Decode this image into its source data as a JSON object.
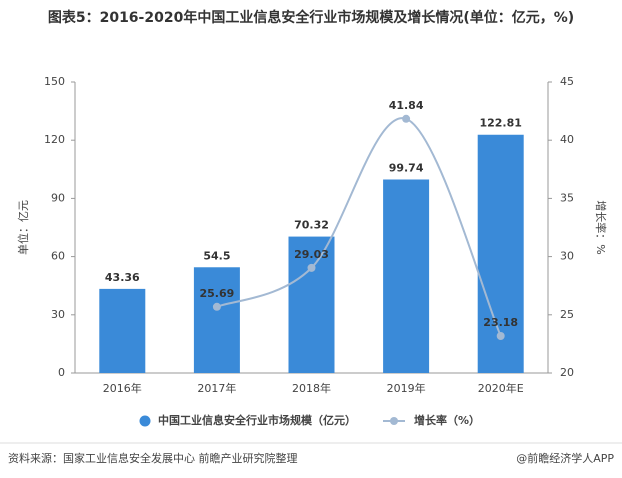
{
  "chart_data": {
    "type": "bar",
    "title": "图表5：2016-2020年中国工业信息安全行业市场规模及增长情况(单位：亿元，%)",
    "y_label": "单位：亿元",
    "y2_label": "增长率：%",
    "categories": [
      "2016年",
      "2017年",
      "2018年",
      "2019年",
      "2020年E"
    ],
    "series": [
      {
        "name": "中国工业信息安全行业市场规模（亿元）",
        "type": "bar",
        "color": "#3a8ad8",
        "values": [
          43.36,
          54.5,
          70.32,
          99.74,
          122.81
        ]
      },
      {
        "name": "增长率（%）",
        "type": "line",
        "axis": "y2",
        "color": "#a3b9d3",
        "values": [
          null,
          25.69,
          29.03,
          41.84,
          23.18
        ]
      }
    ],
    "ylim": [
      0,
      150
    ],
    "yticks": [
      0,
      30,
      60,
      90,
      120,
      150
    ],
    "y2lim": [
      20,
      45
    ],
    "y2ticks": [
      20,
      25,
      30,
      35,
      40,
      45
    ],
    "legend": "bottom",
    "source": "资料来源：国家工业信息安全发展中心 前瞻产业研究院整理",
    "credit": "@前瞻经济学人APP"
  }
}
